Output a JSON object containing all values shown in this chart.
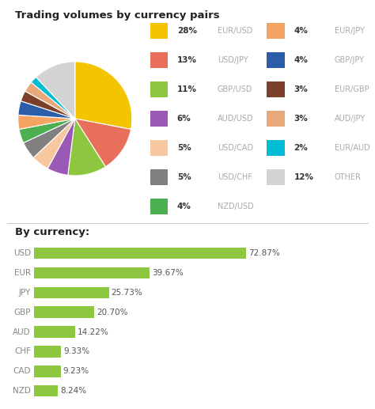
{
  "title_pie": "Trading volumes by currency pairs",
  "title_bar": "By currency:",
  "pie_labels": [
    "EUR/USD",
    "USD/JPY",
    "GBP/USD",
    "AUD/USD",
    "USD/CAD",
    "USD/CHF",
    "NZD/USD",
    "EUR/JPY",
    "GBP/JPY",
    "EUR/GBP",
    "AUD/JPY",
    "EUR/AUD",
    "OTHER"
  ],
  "pie_values": [
    28,
    13,
    11,
    6,
    5,
    5,
    4,
    4,
    4,
    3,
    3,
    2,
    12
  ],
  "pie_colors": [
    "#F5C400",
    "#E8705A",
    "#8DC63F",
    "#9B59B6",
    "#F7C8A0",
    "#808080",
    "#4CAF50",
    "#F4A460",
    "#2B5DA8",
    "#7B3F2A",
    "#E8A87C",
    "#00BCD4",
    "#D3D3D3"
  ],
  "legend_col1_pct": [
    "28%",
    "13%",
    "11%",
    "6%",
    "5%",
    "5%",
    "4%"
  ],
  "legend_col1_name": [
    "EUR/USD",
    "USD/JPY",
    "GBP/USD",
    "AUD/USD",
    "USD/CAD",
    "USD/CHF",
    "NZD/USD"
  ],
  "legend_col2_pct": [
    "4%",
    "4%",
    "3%",
    "3%",
    "2%",
    "12%"
  ],
  "legend_col2_name": [
    "EUR/JPY",
    "GBP/JPY",
    "EUR/GBP",
    "AUD/JPY",
    "EUR/AUD",
    "OTHER"
  ],
  "bar_currencies": [
    "USD",
    "EUR",
    "JPY",
    "GBP",
    "AUD",
    "CHF",
    "CAD",
    "NZD"
  ],
  "bar_values": [
    72.87,
    39.67,
    25.73,
    20.7,
    14.22,
    9.33,
    9.23,
    8.24
  ],
  "bar_color": "#8DC63F",
  "background_color": "#ffffff",
  "divider_color": "#cccccc",
  "title_color": "#222222",
  "pct_color": "#333333",
  "name_color": "#aaaaaa",
  "bar_label_color": "#555555",
  "bar_tick_color": "#888888"
}
